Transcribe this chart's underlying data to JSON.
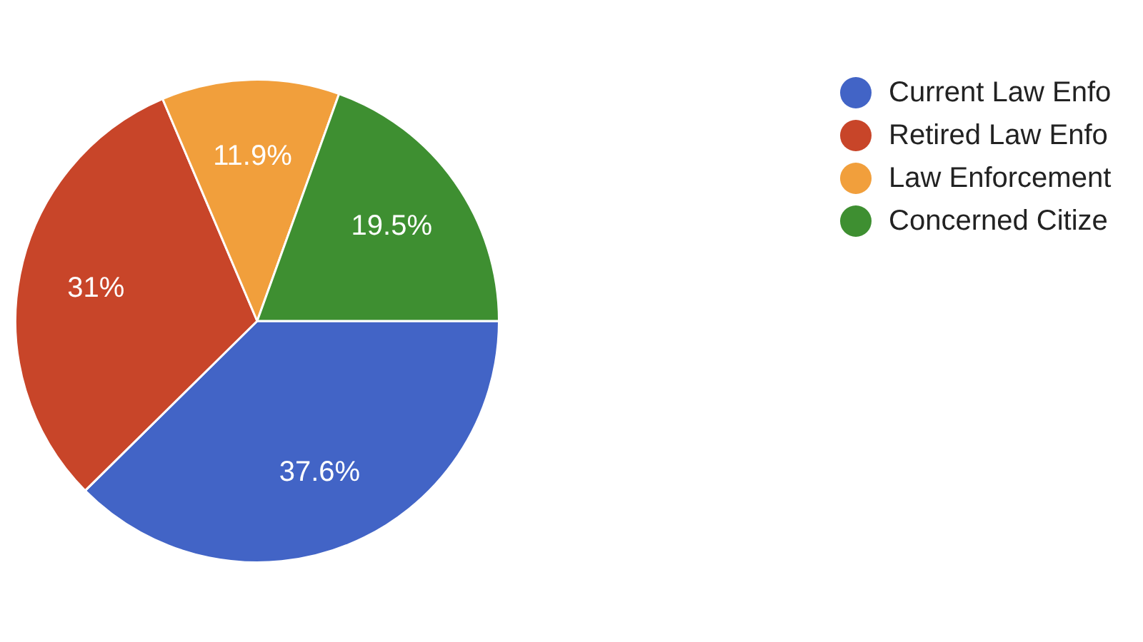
{
  "chart_data": {
    "type": "pie",
    "categories": [
      "Current Law Enfo",
      "Retired Law Enfo",
      "Law Enforcement",
      "Concerned Citize"
    ],
    "values": [
      37.6,
      31,
      11.9,
      19.5
    ],
    "colors": [
      "#4264c6",
      "#c84529",
      "#f19f3c",
      "#3e8f31"
    ],
    "value_labels": [
      "37.6%",
      "31%",
      "11.9%",
      "19.5%"
    ],
    "legend": "top right"
  }
}
